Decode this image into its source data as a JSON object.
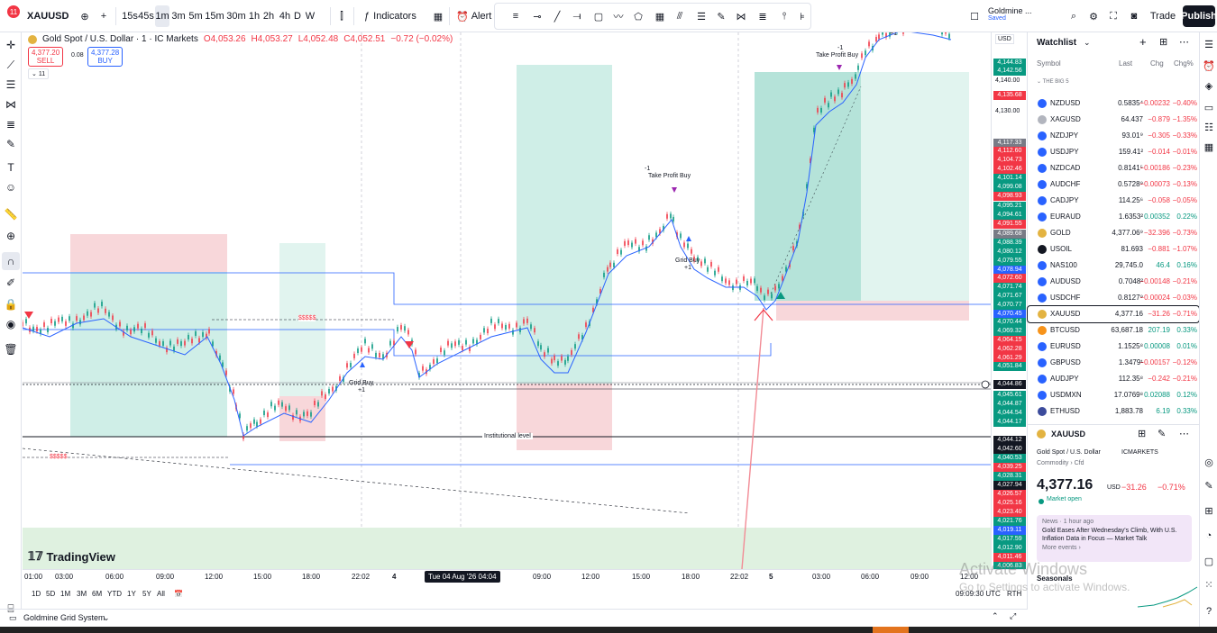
{
  "topbar": {
    "notif_count": "11",
    "symbol": "XAUUSD",
    "timeframes": [
      "15s",
      "45s",
      "1m",
      "3m",
      "5m",
      "15m",
      "30m",
      "1h",
      "2h",
      "4h",
      "D",
      "W"
    ],
    "indicators_label": "Indicators",
    "alert_label": "Alert",
    "layout_name": "Goldmine ...",
    "layout_status": "Saved",
    "trade_label": "Trade",
    "publish_label": "Publish"
  },
  "chart": {
    "title": "Gold Spot / U.S. Dollar · 1 · IC Markets",
    "ohlc": {
      "o": "O4,053.26",
      "h": "H4,053.27",
      "l": "L4,052.48",
      "c": "C4,052.51",
      "chg": "−0.72 (−0.02%)"
    },
    "sell": {
      "price": "4,377.20",
      "label": "SELL"
    },
    "spread": "0.08",
    "buy": {
      "price": "4,377.28",
      "label": "BUY"
    },
    "indicator_count": "11",
    "currency": "USD",
    "annotations": {
      "tp1": "Take Profit Buy",
      "tp1_count": "-1",
      "tp2": "Take Profit Buy",
      "tp2_count": "-1",
      "grid1": "Grid Buy",
      "grid1_count": "+1",
      "grid2": "Grid Buy",
      "grid2_count": "+1",
      "institutional": "Institutional level",
      "top_count": "+1",
      "dash_label": "$$$$$"
    },
    "logo": "TradingView"
  },
  "price_axis": {
    "labels": [
      {
        "v": "4,144.83",
        "c": "#089981"
      },
      {
        "v": "4,142.56",
        "c": "#089981"
      },
      {
        "v": "4,135.68",
        "c": "#f23645"
      },
      {
        "v": "4,117.33",
        "c": "#787b86"
      },
      {
        "v": "4,112.60",
        "c": "#f23645"
      },
      {
        "v": "4,104.73",
        "c": "#f23645"
      },
      {
        "v": "4,102.46",
        "c": "#f23645"
      },
      {
        "v": "4,101.14",
        "c": "#089981"
      },
      {
        "v": "4,099.08",
        "c": "#089981"
      },
      {
        "v": "4,098.93",
        "c": "#f23645"
      },
      {
        "v": "4,095.21",
        "c": "#089981"
      },
      {
        "v": "4,094.61",
        "c": "#089981"
      },
      {
        "v": "4,091.55",
        "c": "#f23645"
      },
      {
        "v": "4,089.68",
        "c": "#787b86"
      },
      {
        "v": "4,088.39",
        "c": "#089981"
      },
      {
        "v": "4,080.12",
        "c": "#089981"
      },
      {
        "v": "4,079.55",
        "c": "#089981"
      },
      {
        "v": "4,078.94",
        "c": "#2962ff"
      },
      {
        "v": "4,072.60",
        "c": "#f23645"
      },
      {
        "v": "4,071.74",
        "c": "#089981"
      },
      {
        "v": "4,071.67",
        "c": "#089981"
      },
      {
        "v": "4,070.77",
        "c": "#089981"
      },
      {
        "v": "4,070.45",
        "c": "#2962ff"
      },
      {
        "v": "4,070.44",
        "c": "#089981"
      },
      {
        "v": "4,069.32",
        "c": "#089981"
      },
      {
        "v": "4,064.15",
        "c": "#f23645"
      },
      {
        "v": "4,062.28",
        "c": "#f23645"
      },
      {
        "v": "4,061.29",
        "c": "#f23645"
      },
      {
        "v": "4,051.84",
        "c": "#089981"
      },
      {
        "v": "4,044.86",
        "c": "#131722"
      },
      {
        "v": "4,045.61",
        "c": "#089981"
      },
      {
        "v": "4,044.87",
        "c": "#089981"
      },
      {
        "v": "4,044.54",
        "c": "#089981"
      },
      {
        "v": "4,044.17",
        "c": "#089981"
      },
      {
        "v": "4,044.12",
        "c": "#131722"
      },
      {
        "v": "4,042.60",
        "c": "#131722"
      },
      {
        "v": "4,040.53",
        "c": "#089981"
      },
      {
        "v": "4,039.25",
        "c": "#f23645"
      },
      {
        "v": "4,028.31",
        "c": "#089981"
      },
      {
        "v": "4,027.94",
        "c": "#131722"
      },
      {
        "v": "4,026.57",
        "c": "#f23645"
      },
      {
        "v": "4,025.16",
        "c": "#f23645"
      },
      {
        "v": "4,023.40",
        "c": "#f23645"
      },
      {
        "v": "4,021.76",
        "c": "#089981"
      },
      {
        "v": "4,019.11",
        "c": "#2962ff"
      },
      {
        "v": "4,017.59",
        "c": "#089981"
      },
      {
        "v": "4,012.90",
        "c": "#089981"
      },
      {
        "v": "4,011.46",
        "c": "#f23645"
      },
      {
        "v": "4,006.83",
        "c": "#089981"
      }
    ],
    "ticks": [
      "4,140.00",
      "4,130.00"
    ]
  },
  "time_axis": {
    "labels": [
      "01:00",
      "03:00",
      "06:00",
      "09:00",
      "12:00",
      "15:00",
      "18:00",
      "22:02",
      "4",
      "09:00",
      "12:00",
      "15:00",
      "18:00",
      "22:02",
      "5",
      "03:00",
      "06:00",
      "09:00",
      "12:00"
    ],
    "selected": "Tue 04 Aug '26   04:04"
  },
  "range_bar": {
    "ranges": [
      "1D",
      "5D",
      "1M",
      "3M",
      "6M",
      "YTD",
      "1Y",
      "5Y",
      "All"
    ],
    "time": "09:09:30 UTC",
    "session": "RTH"
  },
  "bottom_panel": {
    "title": "Goldmine Grid System"
  },
  "watchlist": {
    "title": "Watchlist",
    "col_symbol": "Symbol",
    "col_last": "Last",
    "col_chg": "Chg",
    "col_chgp": "Chg%",
    "section": "THE BIG 5",
    "rows": [
      {
        "sym": "NZDUSD",
        "last": "0.5835⁴",
        "chg": "−0.00232",
        "chgp": "−0.40%",
        "dir": "neg",
        "ic": "#2962ff"
      },
      {
        "sym": "XAGUSD",
        "last": "64.437",
        "chg": "−0.879",
        "chgp": "−1.35%",
        "dir": "neg",
        "ic": "#b2b5be"
      },
      {
        "sym": "NZDJPY",
        "last": "93.01⁹",
        "chg": "−0.305",
        "chgp": "−0.33%",
        "dir": "neg",
        "ic": "#2962ff"
      },
      {
        "sym": "USDJPY",
        "last": "159.41²",
        "chg": "−0.014",
        "chgp": "−0.01%",
        "dir": "neg",
        "ic": "#2962ff"
      },
      {
        "sym": "NZDCAD",
        "last": "0.8141⁵",
        "chg": "−0.00186",
        "chgp": "−0.23%",
        "dir": "neg",
        "ic": "#2962ff"
      },
      {
        "sym": "AUDCHF",
        "last": "0.5728⁹",
        "chg": "−0.00073",
        "chgp": "−0.13%",
        "dir": "neg",
        "ic": "#2962ff"
      },
      {
        "sym": "CADJPY",
        "last": "114.25⁶",
        "chg": "−0.058",
        "chgp": "−0.05%",
        "dir": "neg",
        "ic": "#2962ff"
      },
      {
        "sym": "EURAUD",
        "last": "1.6353²",
        "chg": "0.00352",
        "chgp": "0.22%",
        "dir": "pos",
        "ic": "#2962ff"
      },
      {
        "sym": "GOLD",
        "last": "4,377.06⁹",
        "chg": "−32.396",
        "chgp": "−0.73%",
        "dir": "neg",
        "ic": "#e3b341"
      },
      {
        "sym": "USOIL",
        "last": "81.693",
        "chg": "−0.881",
        "chgp": "−1.07%",
        "dir": "neg",
        "ic": "#131722"
      },
      {
        "sym": "NAS100",
        "last": "29,745.0",
        "chg": "46.4",
        "chgp": "0.16%",
        "dir": "pos",
        "ic": "#2962ff"
      },
      {
        "sym": "AUDUSD",
        "last": "0.7048²",
        "chg": "−0.00148",
        "chgp": "−0.21%",
        "dir": "neg",
        "ic": "#2962ff"
      },
      {
        "sym": "USDCHF",
        "last": "0.8127⁹",
        "chg": "−0.00024",
        "chgp": "−0.03%",
        "dir": "neg",
        "ic": "#2962ff"
      },
      {
        "sym": "XAUUSD",
        "last": "4,377.16",
        "chg": "−31.26",
        "chgp": "−0.71%",
        "dir": "neg",
        "ic": "#e3b341"
      },
      {
        "sym": "BTCUSD",
        "last": "63,687.18",
        "chg": "207.19",
        "chgp": "0.33%",
        "dir": "pos",
        "ic": "#f7931a"
      },
      {
        "sym": "EURUSD",
        "last": "1.1525⁸",
        "chg": "0.00008",
        "chgp": "0.01%",
        "dir": "pos",
        "ic": "#2962ff"
      },
      {
        "sym": "GBPUSD",
        "last": "1.3479¹",
        "chg": "−0.00157",
        "chgp": "−0.12%",
        "dir": "neg",
        "ic": "#2962ff"
      },
      {
        "sym": "AUDJPY",
        "last": "112.35⁸",
        "chg": "−0.242",
        "chgp": "−0.21%",
        "dir": "neg",
        "ic": "#2962ff"
      },
      {
        "sym": "USDMXN",
        "last": "17.0769⁸",
        "chg": "0.02088",
        "chgp": "0.12%",
        "dir": "pos",
        "ic": "#2962ff"
      },
      {
        "sym": "ETHUSD",
        "last": "1,883.78",
        "chg": "6.19",
        "chgp": "0.33%",
        "dir": "pos",
        "ic": "#3c4b9c"
      }
    ]
  },
  "details": {
    "symbol": "XAUUSD",
    "name": "Gold Spot / U.S. Dollar",
    "exchange": "ICMARKETS",
    "type": "Commodity › Cfd",
    "price": "4,377.16",
    "currency": "USD",
    "change": "−31.26",
    "change_pct": "−0.71%",
    "status": "Market open",
    "news_meta": "News · 1 hour ago",
    "news_title": "Gold Eases After Wednesday's Climb, With U.S. Inflation Data in Focus — Market Talk",
    "news_more": "More events ›",
    "seasonals": "Seasonals"
  },
  "watermark": {
    "line1": "Activate Windows",
    "line2": "Go to Settings to activate Windows."
  }
}
